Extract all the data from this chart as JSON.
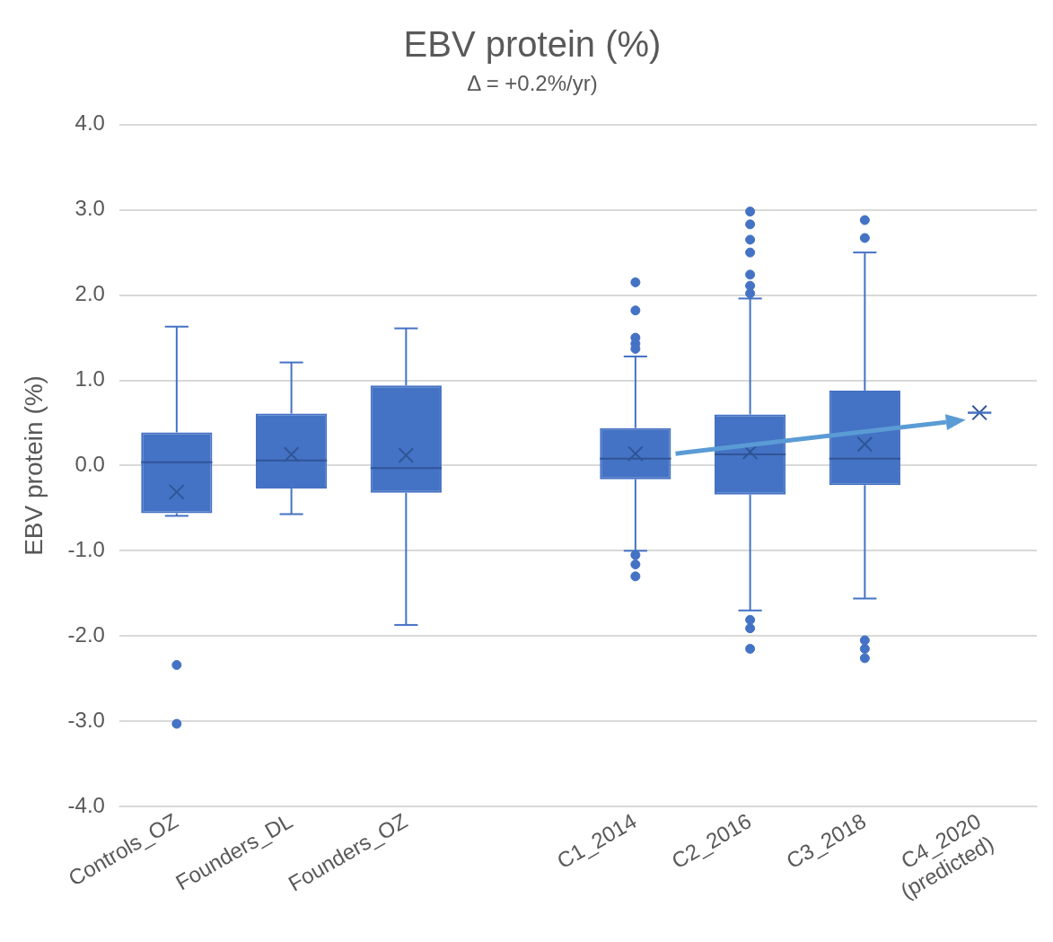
{
  "chart_data": {
    "type": "box",
    "title": "EBV protein (%)",
    "subtitle": "Δ = +0.2%/yr)",
    "ylabel": "EBV protein (%)",
    "categories": [
      "Controls_OZ",
      "Founders_DL",
      "Founders_OZ",
      null,
      "C1_2014",
      "C2_2016",
      "C3_2018",
      "C4_2020\n(predicted)"
    ],
    "color": "#4472c4",
    "boxes": [
      {
        "low": -0.59,
        "q1": -0.56,
        "median": 0.04,
        "q3": 0.39,
        "high": 1.63,
        "mean": -0.31,
        "outliers": [
          -2.34,
          -3.03
        ]
      },
      {
        "low": -0.57,
        "q1": -0.27,
        "median": 0.06,
        "q3": 0.61,
        "high": 1.21,
        "mean": 0.13
      },
      {
        "low": -1.87,
        "q1": -0.32,
        "median": -0.03,
        "q3": 0.94,
        "high": 1.61,
        "mean": 0.12
      },
      null,
      {
        "low": -1.0,
        "q1": -0.16,
        "median": 0.08,
        "q3": 0.44,
        "high": 1.28,
        "mean": 0.14,
        "outliers": [
          2.15,
          1.82,
          1.5,
          1.43,
          1.37,
          -1.05,
          -1.16,
          -1.3
        ]
      },
      {
        "low": -1.7,
        "q1": -0.34,
        "median": 0.13,
        "q3": 0.6,
        "high": 1.96,
        "mean": 0.16,
        "outliers": [
          2.98,
          2.83,
          2.65,
          2.5,
          2.24,
          2.11,
          2.02,
          -1.81,
          -1.91,
          -2.15
        ]
      },
      {
        "low": -1.56,
        "q1": -0.23,
        "median": 0.08,
        "q3": 0.88,
        "high": 2.5,
        "mean": 0.25,
        "outliers": [
          2.88,
          2.67,
          -2.05,
          -2.15,
          -2.26
        ]
      },
      {
        "low": 0.62,
        "q1": 0.62,
        "median": 0.62,
        "q3": 0.62,
        "high": 0.62,
        "mean": 0.62
      }
    ],
    "ylim": [
      -4,
      4
    ],
    "yticks": [
      {
        "value": -4,
        "label": "-4.0"
      },
      {
        "value": -3,
        "label": "-3.0"
      },
      {
        "value": -2,
        "label": "-2.0"
      },
      {
        "value": -1,
        "label": "-1.0"
      },
      {
        "value": 0,
        "label": "0.0"
      },
      {
        "value": 1,
        "label": "1.0"
      },
      {
        "value": 2,
        "label": "2.0"
      },
      {
        "value": 3,
        "label": "3.0"
      },
      {
        "value": 4,
        "label": "4.0"
      }
    ],
    "grid": "y",
    "legend": false,
    "marker": "circle"
  }
}
